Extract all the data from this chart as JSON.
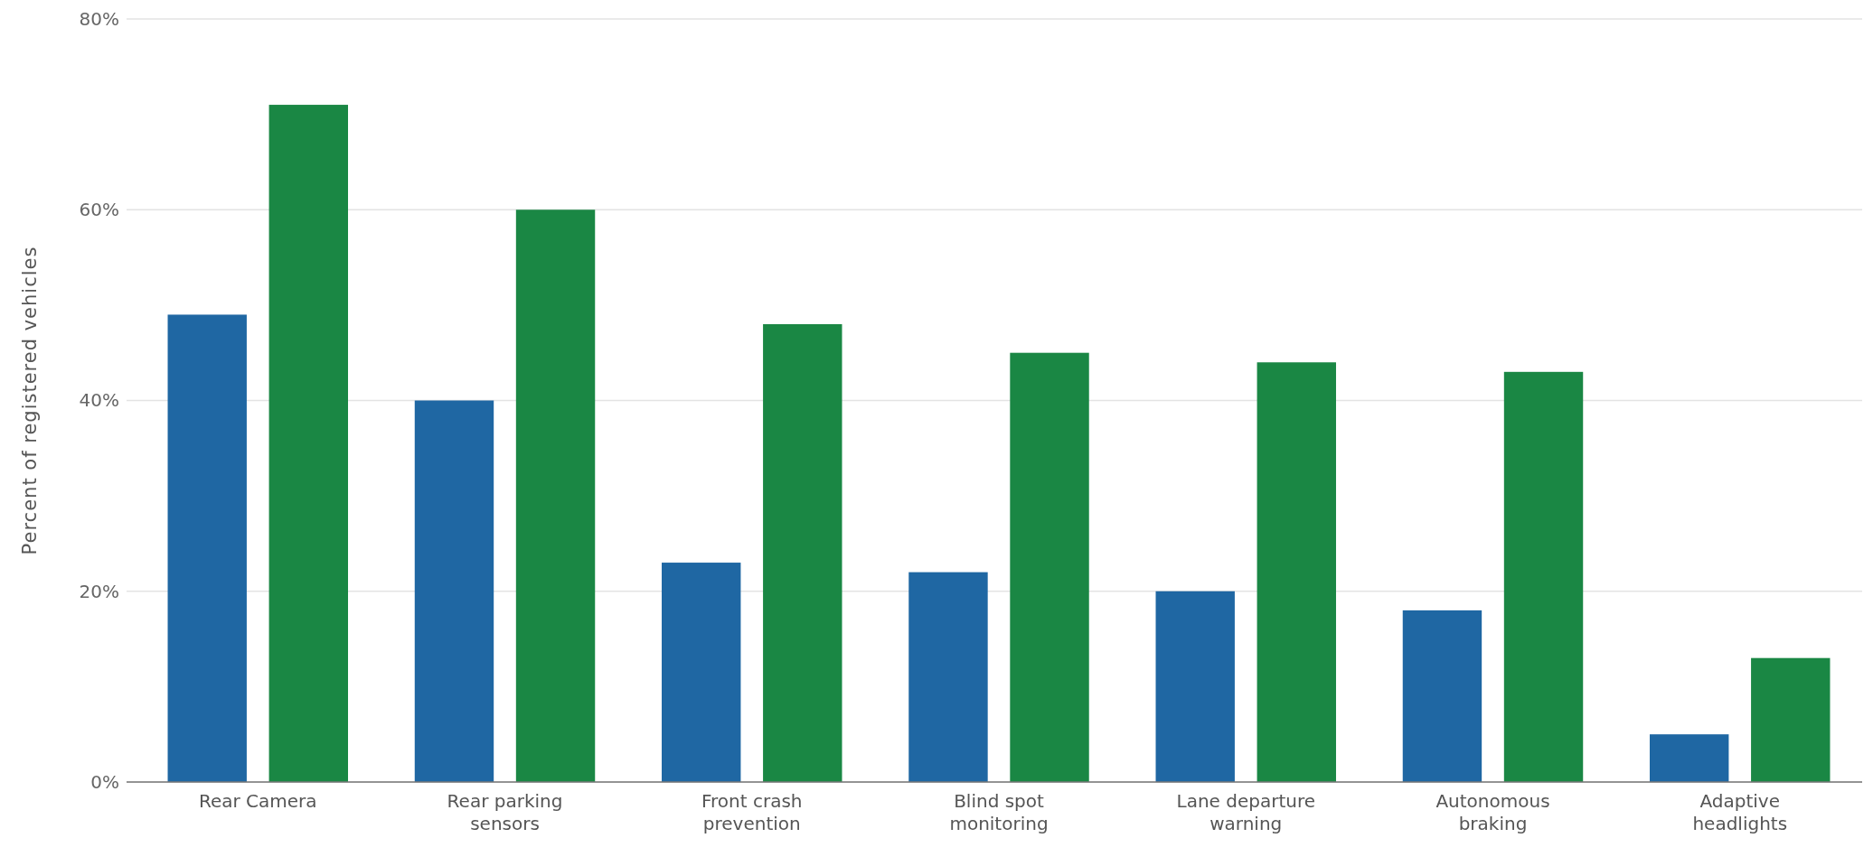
{
  "chart_data": {
    "type": "bar",
    "ylabel": "Percent of registered vehicles",
    "categories": [
      "Rear Camera",
      "Rear parking sensors",
      "Front crash prevention",
      "Blind spot monitoring",
      "Lane departure warning",
      "Autonomous braking",
      "Adaptive headlights"
    ],
    "series": [
      {
        "color": "#1f67a3",
        "values": [
          49,
          40,
          23,
          22,
          20,
          18,
          5
        ]
      },
      {
        "color": "#1a8744",
        "values": [
          71,
          60,
          48,
          45,
          44,
          43,
          13
        ]
      }
    ],
    "ylim": [
      0,
      80
    ],
    "yticks": [
      {
        "value": 0,
        "label": "0%"
      },
      {
        "value": 20,
        "label": "20%"
      },
      {
        "value": 40,
        "label": "40%"
      },
      {
        "value": 60,
        "label": "60%"
      },
      {
        "value": 80,
        "label": "80%"
      }
    ],
    "grid": "y"
  }
}
